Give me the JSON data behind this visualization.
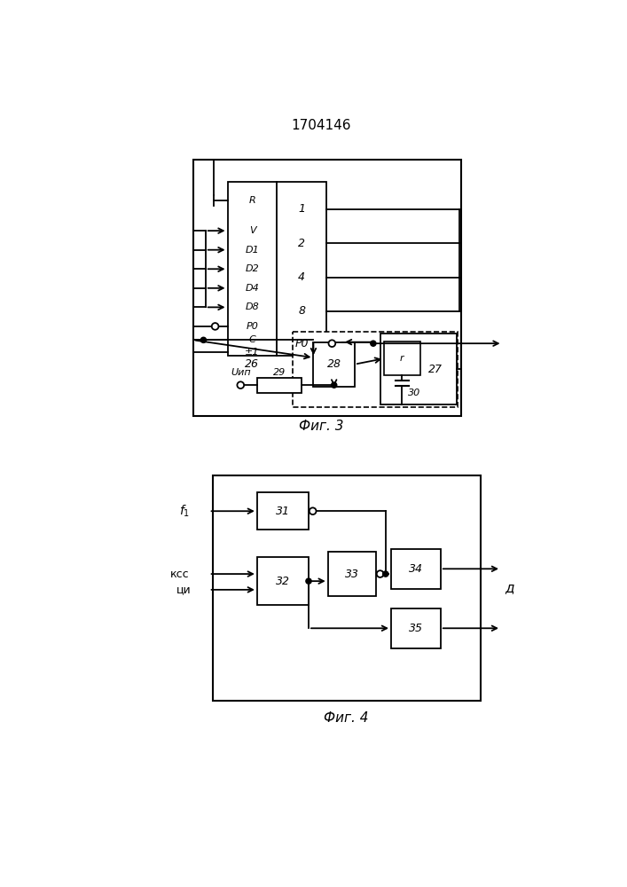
{
  "title": "1704146",
  "fig3_label": "Фиг. 3",
  "fig4_label": "Фиг. 4",
  "background": "#ffffff",
  "line_color": "#000000"
}
